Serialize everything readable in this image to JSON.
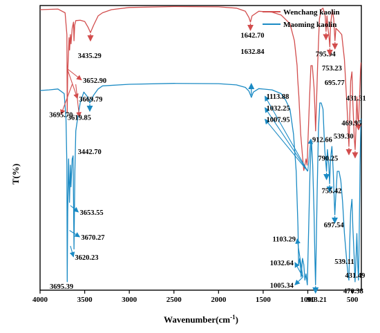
{
  "chart_data": {
    "type": "line",
    "xlabel": "Wavenumber(cm",
    "xlabel_sup": "-1",
    "xlabel_close": ")",
    "ylabel": "T(%)",
    "xlim": [
      4000,
      400
    ],
    "xticks": [
      4000,
      3500,
      3000,
      2500,
      2000,
      1500,
      1000,
      500
    ],
    "legend_position": "top-right",
    "colors": {
      "wenchang": "#d24d4d",
      "maoming": "#1a8ac4"
    },
    "series": [
      {
        "name": "Wenchang kaolin",
        "points": [
          [
            4000,
            90
          ],
          [
            3800,
            90.2
          ],
          [
            3720,
            89
          ],
          [
            3700,
            82
          ],
          [
            3695.7,
            57
          ],
          [
            3690,
            70
          ],
          [
            3675,
            81
          ],
          [
            3669.79,
            77
          ],
          [
            3660,
            82
          ],
          [
            3652.9,
            79
          ],
          [
            3640,
            84
          ],
          [
            3625,
            86
          ],
          [
            3619.85,
            80
          ],
          [
            3612,
            85
          ],
          [
            3600,
            86.5
          ],
          [
            3550,
            86.6
          ],
          [
            3500,
            86.2
          ],
          [
            3460,
            84.2
          ],
          [
            3435.29,
            82.6
          ],
          [
            3400,
            85
          ],
          [
            3350,
            88
          ],
          [
            3300,
            89
          ],
          [
            3200,
            90
          ],
          [
            3000,
            90.7
          ],
          [
            2500,
            91
          ],
          [
            2000,
            90.9
          ],
          [
            1800,
            90.5
          ],
          [
            1700,
            89.5
          ],
          [
            1660,
            87.5
          ],
          [
            1642.7,
            86
          ],
          [
            1625,
            88
          ],
          [
            1550,
            89.5
          ],
          [
            1400,
            89.2
          ],
          [
            1300,
            88.3
          ],
          [
            1200,
            85.5
          ],
          [
            1150,
            80
          ],
          [
            1120,
            72
          ],
          [
            1113.88,
            68
          ],
          [
            1100,
            62
          ],
          [
            1080,
            50
          ],
          [
            1060,
            43
          ],
          [
            1045,
            38.3
          ],
          [
            1032.25,
            40
          ],
          [
            1020,
            42
          ],
          [
            1007.95,
            40
          ],
          [
            995,
            50
          ],
          [
            980,
            62
          ],
          [
            965,
            72
          ],
          [
            950,
            72
          ],
          [
            930,
            65
          ],
          [
            920,
            58
          ],
          [
            912.66,
            51
          ],
          [
            905,
            58
          ],
          [
            890,
            72
          ],
          [
            870,
            87
          ],
          [
            850,
            90
          ],
          [
            830,
            90.5
          ],
          [
            805,
            88
          ],
          [
            795.94,
            83
          ],
          [
            785,
            88
          ],
          [
            775,
            84
          ],
          [
            765,
            82
          ],
          [
            753.23,
            78
          ],
          [
            745,
            85
          ],
          [
            725,
            90
          ],
          [
            710,
            87
          ],
          [
            695.77,
            80
          ],
          [
            685,
            84
          ],
          [
            650,
            83
          ],
          [
            620,
            82
          ],
          [
            590,
            74
          ],
          [
            565,
            61
          ],
          [
            550,
            53
          ],
          [
            539.3,
            46
          ],
          [
            530,
            55
          ],
          [
            520,
            67
          ],
          [
            505,
            70
          ],
          [
            495,
            60
          ],
          [
            480,
            49
          ],
          [
            469.95,
            45
          ],
          [
            460,
            52
          ],
          [
            450,
            62
          ],
          [
            440,
            55
          ],
          [
            431.31,
            54
          ],
          [
            420,
            62
          ],
          [
            410,
            70
          ],
          [
            405,
            73
          ]
        ]
      },
      {
        "name": "Maoming kaolin",
        "points": [
          [
            4000,
            64
          ],
          [
            3900,
            64.2
          ],
          [
            3800,
            64.5
          ],
          [
            3730,
            63
          ],
          [
            3710,
            55
          ],
          [
            3700,
            40
          ],
          [
            3695.39,
            2.5
          ],
          [
            3690,
            25
          ],
          [
            3680,
            42
          ],
          [
            3670.27,
            28
          ],
          [
            3660,
            40
          ],
          [
            3653.55,
            33
          ],
          [
            3640,
            42
          ],
          [
            3630,
            43
          ],
          [
            3620.23,
            13
          ],
          [
            3610,
            38
          ],
          [
            3600,
            51
          ],
          [
            3580,
            55
          ],
          [
            3550,
            60
          ],
          [
            3510,
            63.5
          ],
          [
            3470,
            62
          ],
          [
            3442.7,
            60
          ],
          [
            3400,
            62.5
          ],
          [
            3350,
            64.5
          ],
          [
            3300,
            65.5
          ],
          [
            3000,
            66
          ],
          [
            2500,
            66.3
          ],
          [
            2000,
            66.2
          ],
          [
            1800,
            65.8
          ],
          [
            1700,
            65
          ],
          [
            1660,
            63.8
          ],
          [
            1632.84,
            61.8
          ],
          [
            1610,
            63.5
          ],
          [
            1550,
            64.6
          ],
          [
            1400,
            64.2
          ],
          [
            1300,
            63
          ],
          [
            1250,
            61
          ],
          [
            1200,
            58
          ],
          [
            1160,
            50
          ],
          [
            1130,
            38
          ],
          [
            1110,
            20
          ],
          [
            1103.29,
            8
          ],
          [
            1090,
            10
          ],
          [
            1075,
            4
          ],
          [
            1060,
            10
          ],
          [
            1045,
            8
          ],
          [
            1032.64,
            3
          ],
          [
            1020,
            5
          ],
          [
            1005.34,
            1.5
          ],
          [
            990,
            20
          ],
          [
            975,
            38
          ],
          [
            960,
            48
          ],
          [
            945,
            40
          ],
          [
            930,
            25
          ],
          [
            920,
            10
          ],
          [
            913.21,
            1.5
          ],
          [
            905,
            15
          ],
          [
            895,
            32
          ],
          [
            880,
            52
          ],
          [
            865,
            60
          ],
          [
            850,
            60
          ],
          [
            830,
            58
          ],
          [
            810,
            45
          ],
          [
            790.25,
            38
          ],
          [
            780,
            45
          ],
          [
            765,
            40
          ],
          [
            755.42,
            34
          ],
          [
            745,
            42
          ],
          [
            730,
            46
          ],
          [
            715,
            38
          ],
          [
            697.54,
            24
          ],
          [
            690,
            28
          ],
          [
            670,
            38
          ],
          [
            650,
            38
          ],
          [
            630,
            35
          ],
          [
            610,
            28
          ],
          [
            590,
            18
          ],
          [
            560,
            8
          ],
          [
            550,
            5
          ],
          [
            539.11,
            3
          ],
          [
            530,
            15
          ],
          [
            520,
            25
          ],
          [
            505,
            29
          ],
          [
            495,
            20
          ],
          [
            480,
            10
          ],
          [
            470.38,
            2.5
          ],
          [
            460,
            10
          ],
          [
            450,
            18
          ],
          [
            440,
            8
          ],
          [
            431.49,
            3
          ],
          [
            425,
            15
          ],
          [
            415,
            40
          ],
          [
            405,
            55
          ]
        ]
      }
    ],
    "annotations": [
      {
        "text": "3435.29",
        "series": "Wenchang kaolin",
        "x": 3435.29,
        "arrow": "down",
        "lx": 3445,
        "ly": 74.5,
        "anchor": "middle"
      },
      {
        "text": "1642.70",
        "series": "Wenchang kaolin",
        "x": 1642.7,
        "arrow": "down",
        "lx": 1620,
        "ly": 81,
        "anchor": "middle"
      },
      {
        "text": "795.94",
        "series": "Wenchang kaolin",
        "x": 795.94,
        "arrow": "down",
        "lx": 800,
        "ly": 75,
        "anchor": "middle"
      },
      {
        "text": "753.23",
        "series": "Wenchang kaolin",
        "x": 753.23,
        "arrow": "down",
        "lx": 730,
        "ly": 70.5,
        "anchor": "middle"
      },
      {
        "text": "695.77",
        "series": "Wenchang kaolin",
        "x": 695.77,
        "arrow": "down",
        "lx": 700,
        "ly": 65.8,
        "anchor": "middle"
      },
      {
        "text": "431.31",
        "series": "Wenchang kaolin",
        "x": 431.31,
        "arrow": "down",
        "lx": 460,
        "ly": 60.8,
        "anchor": "middle"
      },
      {
        "text": "469.95",
        "series": "Wenchang kaolin",
        "x": 469.95,
        "arrow": "down",
        "lx": 510,
        "ly": 52.8,
        "anchor": "middle"
      },
      {
        "text": "539.30",
        "series": "Wenchang kaolin",
        "x": 539.3,
        "arrow": "down",
        "lx": 600,
        "ly": 48.6,
        "anchor": "middle"
      },
      {
        "text": "3652.90",
        "series": "Wenchang kaolin",
        "x": 3652.9,
        "arrow": "ray",
        "lx": 3520,
        "ly": 66.5,
        "anchor": "start",
        "from": [
          3695.7,
          71
        ]
      },
      {
        "text": "3669.79",
        "series": "Wenchang kaolin",
        "x": 3669.79,
        "arrow": "ray",
        "lx": 3565,
        "ly": 60.5,
        "anchor": "start",
        "from": [
          3695.7,
          71
        ]
      },
      {
        "text": "3695.70",
        "series": "Wenchang kaolin",
        "x": 3695.7,
        "arrow": "ray",
        "lx": 3765,
        "ly": 55.4,
        "anchor": "middle",
        "from": [
          3640,
          66
        ]
      },
      {
        "text": "3619.85",
        "series": "Wenchang kaolin",
        "x": 3619.85,
        "arrow": "ray",
        "lx": 3560,
        "ly": 54.6,
        "anchor": "middle",
        "from": [
          3600,
          66
        ]
      },
      {
        "text": "1632.84",
        "series": "Maoming kaolin",
        "x": 1632.84,
        "arrow": "up",
        "lx": 1620,
        "ly": 75.8,
        "anchor": "middle"
      },
      {
        "text": "1113.88",
        "series": "Maoming kaolin",
        "x": 1113.88,
        "arrow": "ray",
        "lx": 1465,
        "ly": 61.3,
        "anchor": "start",
        "from": [
          1000,
          38
        ]
      },
      {
        "text": "1032.25",
        "series": "Maoming kaolin",
        "x": 1032.25,
        "arrow": "ray",
        "lx": 1465,
        "ly": 57.6,
        "anchor": "start",
        "from": [
          1000,
          38
        ]
      },
      {
        "text": "1007.95",
        "series": "Maoming kaolin",
        "x": 1007.95,
        "arrow": "ray",
        "lx": 1465,
        "ly": 53.9,
        "anchor": "start",
        "from": [
          1000,
          38
        ]
      },
      {
        "text": "912.66",
        "series": "Maoming kaolin",
        "x": 912.66,
        "arrow": "ray",
        "lx": 950,
        "ly": 47.5,
        "anchor": "start",
        "from": [
          1000,
          38
        ]
      },
      {
        "text": "790.25",
        "series": "Maoming kaolin",
        "x": 790.25,
        "arrow": "down",
        "lx": 885,
        "ly": 41.5,
        "anchor": "start"
      },
      {
        "text": "755.42",
        "series": "Maoming kaolin",
        "x": 755.42,
        "arrow": "down",
        "lx": 845,
        "ly": 31,
        "anchor": "start"
      },
      {
        "text": "697.54",
        "series": "Maoming kaolin",
        "x": 697.54,
        "arrow": "down",
        "lx": 820,
        "ly": 20,
        "anchor": "start"
      },
      {
        "text": "3442.70",
        "series": "Maoming kaolin",
        "x": 3442.7,
        "arrow": "down",
        "lx": 3445,
        "ly": 43.6,
        "anchor": "middle"
      },
      {
        "text": "3653.55",
        "series": "Maoming kaolin",
        "x": 3653.55,
        "arrow": "ray",
        "lx": 3555,
        "ly": 24,
        "anchor": "start",
        "from": [
          3660,
          27
        ]
      },
      {
        "text": "3670.27",
        "series": "Maoming kaolin",
        "x": 3670.27,
        "arrow": "ray",
        "lx": 3540,
        "ly": 16,
        "anchor": "start",
        "from": [
          3670,
          19
        ]
      },
      {
        "text": "3620.23",
        "series": "Maoming kaolin",
        "x": 3620.23,
        "arrow": "ray",
        "lx": 3610,
        "ly": 9.6,
        "anchor": "start",
        "from": [
          3660,
          14
        ]
      },
      {
        "text": "3695.39",
        "series": "Maoming kaolin",
        "x": 3695.39,
        "arrow": "none",
        "lx": 3760,
        "ly": 0.2,
        "anchor": "middle"
      },
      {
        "text": "1103.29",
        "series": "Maoming kaolin",
        "x": 1103.29,
        "arrow": "ray",
        "lx": 1135,
        "ly": 15.4,
        "anchor": "end",
        "from": [
          1055,
          4
        ]
      },
      {
        "text": "1032.64",
        "series": "Maoming kaolin",
        "x": 1032.64,
        "arrow": "ray",
        "lx": 1160,
        "ly": 7.8,
        "anchor": "end",
        "from": [
          1055,
          4
        ]
      },
      {
        "text": "1005.34",
        "series": "Maoming kaolin",
        "x": 1005.34,
        "arrow": "ray",
        "lx": 1160,
        "ly": 0.6,
        "anchor": "end",
        "from": [
          1055,
          4
        ]
      },
      {
        "text": "913.21",
        "series": "Maoming kaolin",
        "x": 913.21,
        "arrow": "down",
        "lx": 900,
        "ly": -4,
        "anchor": "middle"
      },
      {
        "text": "539.11",
        "series": "Maoming kaolin",
        "x": 539.11,
        "arrow": "none",
        "lx": 590,
        "ly": 8.2,
        "anchor": "middle"
      },
      {
        "text": "431.49",
        "series": "Maoming kaolin",
        "x": 431.49,
        "arrow": "none",
        "lx": 470,
        "ly": 3.8,
        "anchor": "middle"
      },
      {
        "text": "470.38",
        "series": "Maoming kaolin",
        "x": 470.38,
        "arrow": "none",
        "lx": 490,
        "ly": -1.2,
        "anchor": "middle"
      }
    ]
  }
}
